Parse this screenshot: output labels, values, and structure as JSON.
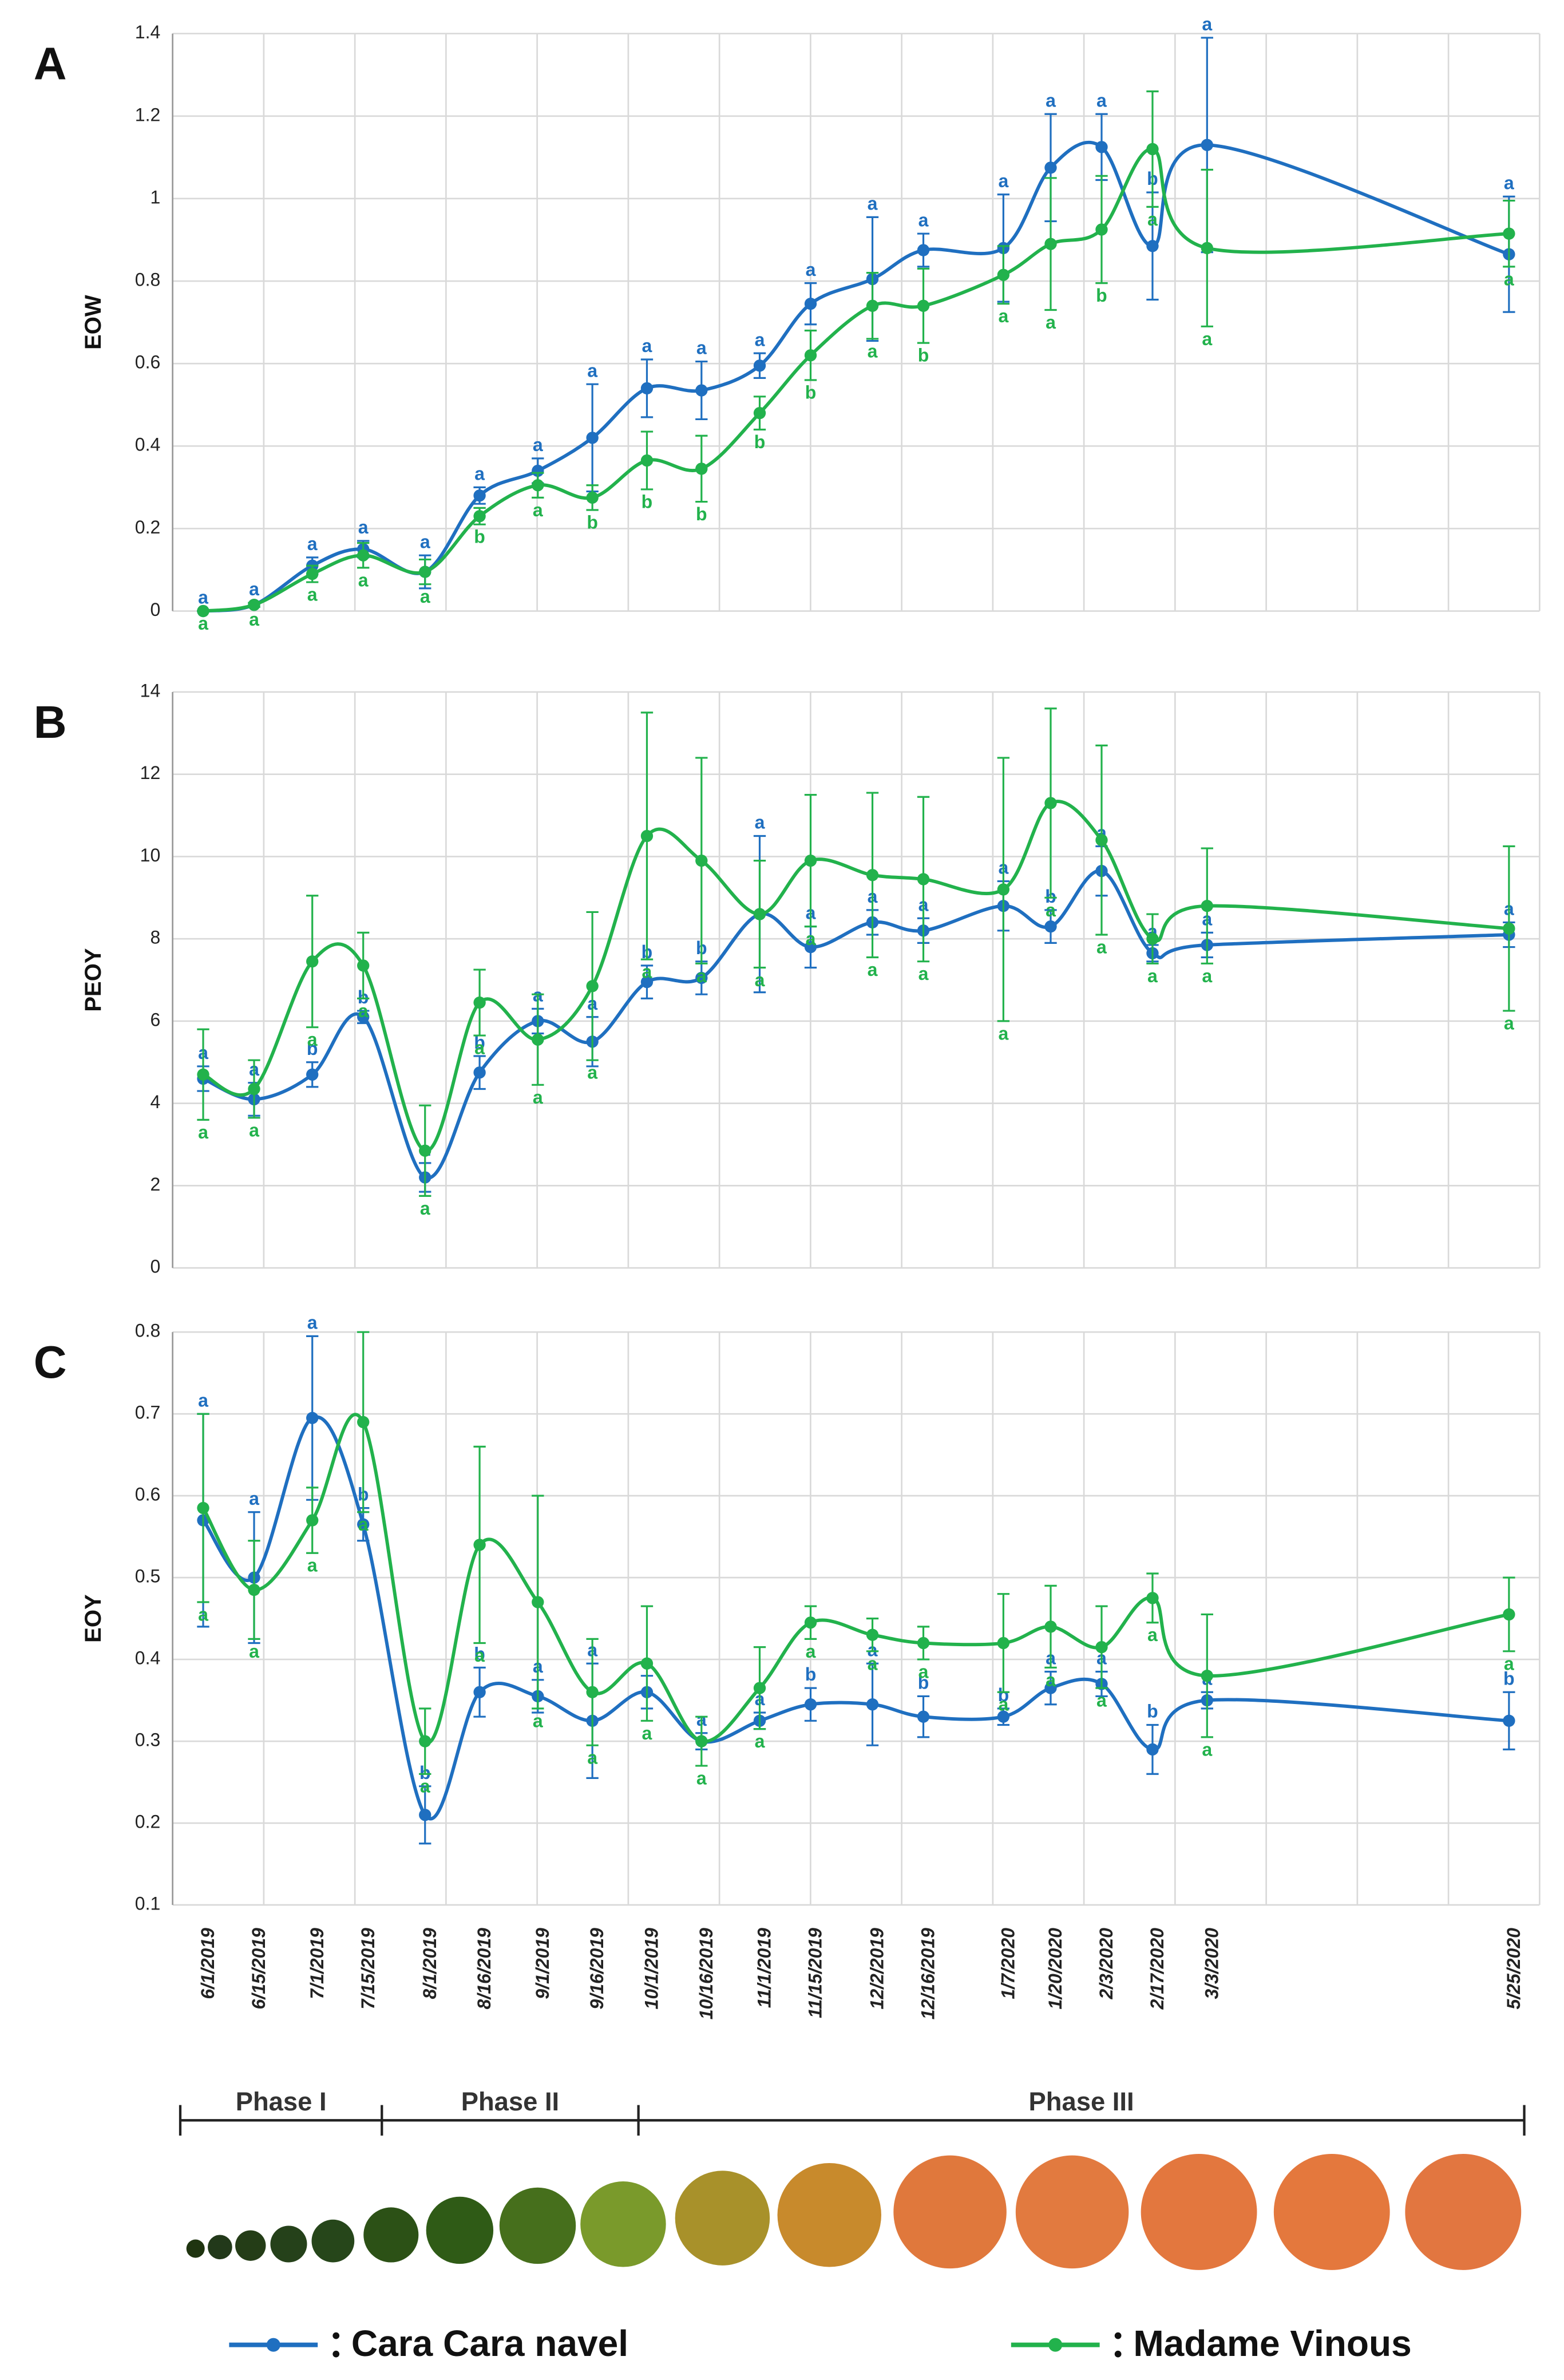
{
  "chart_data": [
    {
      "type": "line",
      "panel": "A",
      "y_label": "EOW",
      "ylim": [
        0,
        1.4
      ],
      "yticks": [
        0,
        0.2,
        0.4,
        0.6,
        0.8,
        1,
        1.2,
        1.4
      ],
      "grid": true,
      "series": [
        {
          "name": "Cara Cara navel",
          "color": "#1f6fc0",
          "values": [
            0,
            0.015,
            0.11,
            0.15,
            0.095,
            0.28,
            0.34,
            0.42,
            0.54,
            0.535,
            0.595,
            0.745,
            0.805,
            0.875,
            0.88,
            1.075,
            1.125,
            0.885,
            1.13,
            0.865
          ],
          "errors": [
            0,
            0.005,
            0.02,
            0.02,
            0.04,
            0.02,
            0.03,
            0.13,
            0.07,
            0.07,
            0.03,
            0.05,
            0.15,
            0.04,
            0.13,
            0.13,
            0.08,
            0.13,
            0.26,
            0.14
          ],
          "letters": [
            "a",
            "a",
            "a",
            "a",
            "a",
            "a",
            "a",
            "a",
            "a",
            "a",
            "a",
            "a",
            "a",
            "a",
            "a",
            "a",
            "a",
            "b",
            "a",
            "a"
          ]
        },
        {
          "name": "Madame Vinous",
          "color": "#22b24c",
          "values": [
            0,
            0.015,
            0.09,
            0.135,
            0.095,
            0.23,
            0.305,
            0.275,
            0.365,
            0.345,
            0.48,
            0.62,
            0.74,
            0.74,
            0.815,
            0.89,
            0.925,
            1.12,
            0.88,
            0.915
          ],
          "errors": [
            0,
            0.005,
            0.02,
            0.03,
            0.03,
            0.02,
            0.03,
            0.03,
            0.07,
            0.08,
            0.04,
            0.06,
            0.08,
            0.09,
            0.07,
            0.16,
            0.13,
            0.14,
            0.19,
            0.08
          ],
          "letters": [
            "a",
            "a",
            "a",
            "a",
            "a",
            "b",
            "a",
            "b",
            "b",
            "b",
            "b",
            "b",
            "a",
            "b",
            "a",
            "a",
            "b",
            "a",
            "a",
            "a"
          ]
        }
      ]
    },
    {
      "type": "line",
      "panel": "B",
      "y_label": "PEOY",
      "ylim": [
        0,
        14
      ],
      "yticks": [
        0,
        2,
        4,
        6,
        8,
        10,
        12,
        14
      ],
      "grid": true,
      "series": [
        {
          "name": "Cara Cara navel",
          "color": "#1f6fc0",
          "values": [
            4.6,
            4.1,
            4.7,
            6.1,
            2.2,
            4.75,
            6.0,
            5.5,
            6.95,
            7.05,
            8.6,
            7.8,
            8.4,
            8.2,
            8.8,
            8.3,
            9.65,
            7.65,
            7.85,
            8.1
          ],
          "errors": [
            0.3,
            0.4,
            0.3,
            0.15,
            0.35,
            0.4,
            0.3,
            0.6,
            0.4,
            0.4,
            1.9,
            0.5,
            0.3,
            0.3,
            0.6,
            0.4,
            0.6,
            0.2,
            0.3,
            0.3
          ],
          "letters": [
            "a",
            "a",
            "b",
            "b",
            "a",
            "b",
            "a",
            "a",
            "b",
            "b",
            "a",
            "a",
            "a",
            "a",
            "a",
            "b",
            "a",
            "a",
            "a",
            "a"
          ]
        },
        {
          "name": "Madame Vinous",
          "color": "#22b24c",
          "values": [
            4.7,
            4.35,
            7.45,
            7.35,
            2.85,
            6.45,
            5.55,
            6.85,
            10.5,
            9.9,
            8.6,
            9.9,
            9.55,
            9.45,
            9.2,
            11.3,
            10.4,
            8.0,
            8.8,
            8.25
          ],
          "errors": [
            1.1,
            0.7,
            1.6,
            0.8,
            1.1,
            0.8,
            1.1,
            1.8,
            3.0,
            2.5,
            1.3,
            1.6,
            2.0,
            2.0,
            3.2,
            2.3,
            2.3,
            0.6,
            1.4,
            2.0
          ],
          "letters": [
            "a",
            "a",
            "a",
            "a",
            "a",
            "a",
            "a",
            "a",
            "a",
            "a",
            "a",
            "a",
            "a",
            "a",
            "a",
            "a",
            "a",
            "a",
            "a",
            "a"
          ]
        }
      ]
    },
    {
      "type": "line",
      "panel": "C",
      "y_label": "EOY",
      "ylim": [
        0.1,
        0.8
      ],
      "yticks": [
        0.1,
        0.2,
        0.3,
        0.4,
        0.5,
        0.6,
        0.7,
        0.8
      ],
      "grid": true,
      "categories": [
        "6/1/2019",
        "6/15/2019",
        "7/1/2019",
        "7/15/2019",
        "8/1/2019",
        "8/16/2019",
        "9/1/2019",
        "9/16/2019",
        "10/1/2019",
        "10/16/2019",
        "11/1/2019",
        "11/15/2019",
        "12/2/2019",
        "12/16/2019",
        "1/7/2020",
        "1/20/2020",
        "2/3/2020",
        "2/17/2020",
        "3/3/2020",
        "5/25/2020"
      ],
      "series": [
        {
          "name": "Cara Cara navel",
          "color": "#1f6fc0",
          "values": [
            0.57,
            0.5,
            0.695,
            0.565,
            0.21,
            0.36,
            0.355,
            0.325,
            0.36,
            0.3,
            0.325,
            0.345,
            0.345,
            0.33,
            0.33,
            0.365,
            0.37,
            0.29,
            0.35,
            0.325
          ],
          "errors": [
            0.13,
            0.08,
            0.1,
            0.02,
            0.035,
            0.03,
            0.02,
            0.07,
            0.02,
            0.01,
            0.01,
            0.02,
            0.05,
            0.025,
            0.01,
            0.02,
            0.015,
            0.03,
            0.01,
            0.035
          ],
          "letters": [
            "a",
            "a",
            "a",
            "b",
            "b",
            "b",
            "a",
            "a",
            "a",
            "a",
            "a",
            "b",
            "a",
            "b",
            "b",
            "a",
            "a",
            "b",
            "a",
            "b"
          ]
        },
        {
          "name": "Madame Vinous",
          "color": "#22b24c",
          "values": [
            0.585,
            0.485,
            0.57,
            0.69,
            0.3,
            0.54,
            0.47,
            0.36,
            0.395,
            0.3,
            0.365,
            0.445,
            0.43,
            0.42,
            0.42,
            0.44,
            0.415,
            0.475,
            0.38,
            0.455
          ],
          "errors": [
            0.115,
            0.06,
            0.04,
            0.11,
            0.04,
            0.12,
            0.13,
            0.065,
            0.07,
            0.03,
            0.05,
            0.02,
            0.02,
            0.02,
            0.06,
            0.05,
            0.05,
            0.03,
            0.075,
            0.045
          ],
          "letters": [
            "a",
            "a",
            "a",
            "a",
            "a",
            "a",
            "a",
            "a",
            "a",
            "a",
            "a",
            "a",
            "a",
            "a",
            "a",
            "a",
            "a",
            "a",
            "a",
            "a"
          ]
        }
      ]
    }
  ],
  "phases": [
    "Phase I",
    "Phase II",
    "Phase III"
  ]
}
